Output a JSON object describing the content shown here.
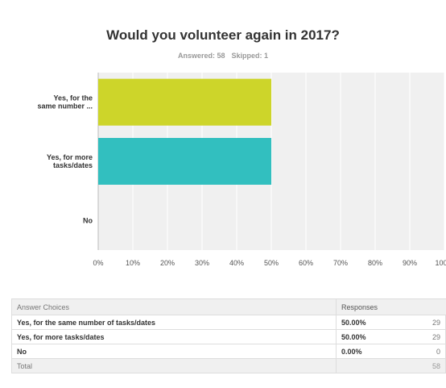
{
  "chart_data": {
    "type": "bar",
    "orientation": "horizontal",
    "title": "Would you volunteer again in 2017?",
    "subtitle": {
      "answered_label": "Answered: 58",
      "skipped_label": "Skipped: 1"
    },
    "categories": [
      "Yes, for the same number ...",
      "Yes, for more tasks/dates",
      "No"
    ],
    "category_lines": [
      [
        "Yes, for the",
        "same number ..."
      ],
      [
        "Yes, for more",
        "tasks/dates"
      ],
      [
        "No"
      ]
    ],
    "values": [
      50,
      50,
      0
    ],
    "bar_colors": [
      "#cdd52a",
      "#32bfbf",
      "#999999"
    ],
    "xlim": [
      0,
      100
    ],
    "xticks": [
      "0%",
      "10%",
      "20%",
      "30%",
      "40%",
      "50%",
      "60%",
      "70%",
      "80%",
      "90%",
      "100%"
    ],
    "grid": true
  },
  "table": {
    "header": {
      "choice": "Answer Choices",
      "responses": "Responses"
    },
    "rows": [
      {
        "choice": "Yes, for the same number of tasks/dates",
        "percent": "50.00%",
        "count": "29"
      },
      {
        "choice": "Yes, for more tasks/dates",
        "percent": "50.00%",
        "count": "29"
      },
      {
        "choice": "No",
        "percent": "0.00%",
        "count": "0"
      }
    ],
    "total": {
      "label": "Total",
      "count": "58"
    }
  }
}
